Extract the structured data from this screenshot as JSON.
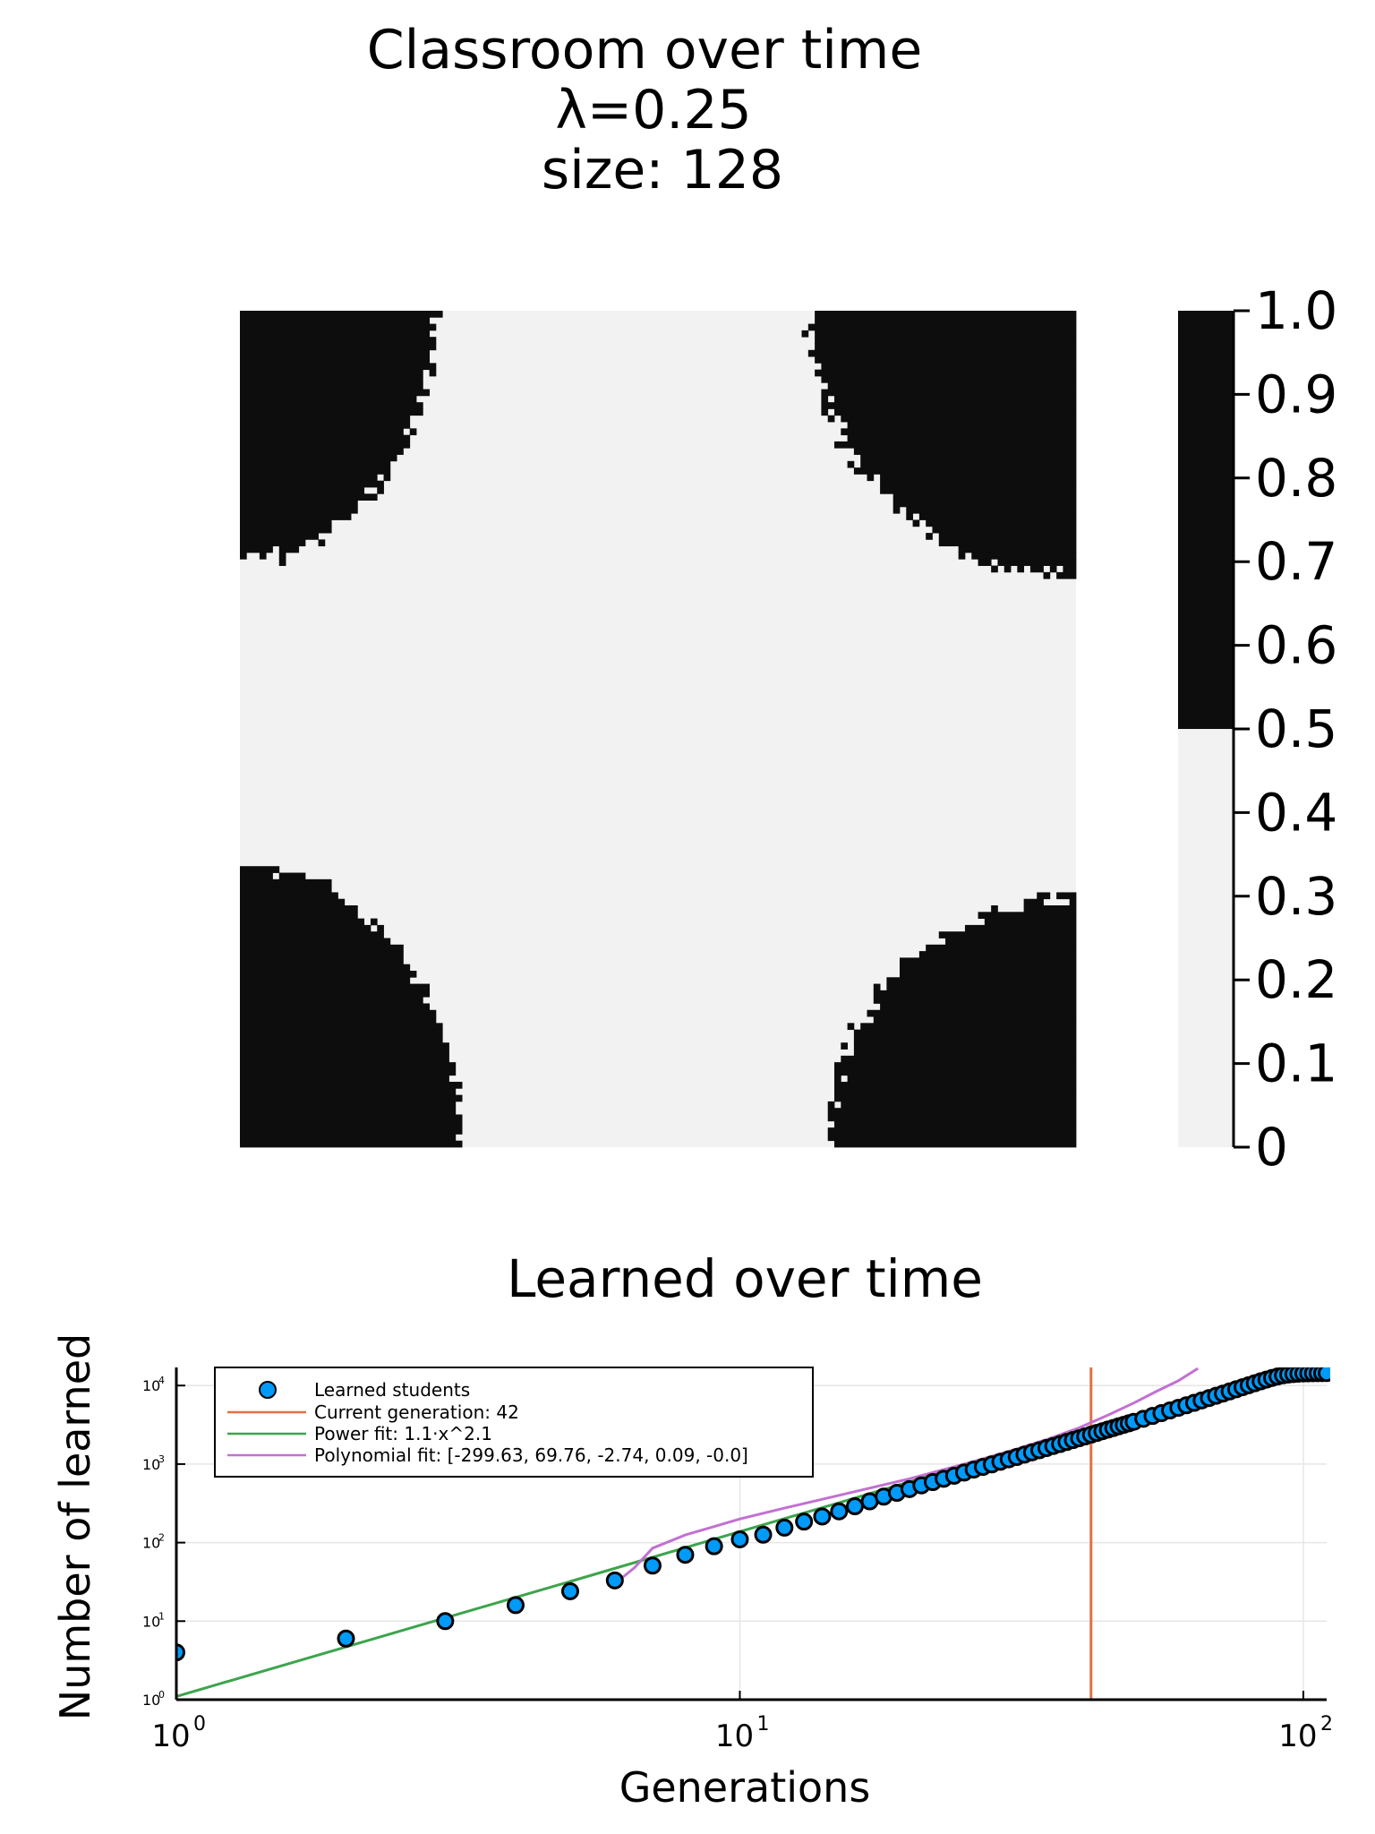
{
  "chart_data": [
    {
      "type": "heatmap",
      "title_lines": [
        "Classroom over time",
        "λ=0.25",
        "size: 128"
      ],
      "grid_size": 128,
      "values_description_levels": [
        0,
        1
      ],
      "colorbar": {
        "ticks": [
          "0",
          "0.1",
          "0.2",
          "0.3",
          "0.4",
          "0.5",
          "0.6",
          "0.7",
          "0.8",
          "0.9",
          "1.0"
        ],
        "range": [
          0,
          1
        ],
        "threshold": 0.5,
        "low_color": "#f2f2f2",
        "high_color": "#0d0d0d"
      },
      "blobs": [
        {
          "corner": "top-left",
          "radius_cells": 30
        },
        {
          "corner": "top-right",
          "radius_cells": 32
        },
        {
          "corner": "bottom-left",
          "radius_cells": 34
        },
        {
          "corner": "bottom-right",
          "radius_cells": 30
        }
      ]
    },
    {
      "type": "scatter",
      "title": "Learned over time",
      "xlabel": "Generations",
      "ylabel": "Number of learned",
      "xscale": "log",
      "yscale": "log",
      "xlim": [
        1,
        110
      ],
      "ylim": [
        1,
        17000
      ],
      "xticks": [
        {
          "value": 1,
          "base": "10",
          "exp": "0"
        },
        {
          "value": 10,
          "base": "10",
          "exp": "1"
        },
        {
          "value": 100,
          "base": "10",
          "exp": "2"
        }
      ],
      "yticks": [
        {
          "value": 1,
          "base": "10",
          "exp": "0"
        },
        {
          "value": 10,
          "base": "10",
          "exp": "1"
        },
        {
          "value": 100,
          "base": "10",
          "exp": "2"
        },
        {
          "value": 1000,
          "base": "10",
          "exp": "3"
        },
        {
          "value": 10000,
          "base": "10",
          "exp": "4"
        }
      ],
      "grid": true,
      "legend_position": "top-left",
      "series": [
        {
          "name": "Learned students",
          "kind": "scatter",
          "color": "#009af9",
          "x": [
            1,
            2,
            3,
            4,
            5,
            6,
            7,
            8,
            9,
            10,
            11,
            12,
            13,
            14,
            15,
            16,
            17,
            18,
            19,
            20,
            21,
            22,
            23,
            24,
            25,
            26,
            27,
            28,
            29,
            30,
            31,
            32,
            33,
            34,
            35,
            36,
            37,
            38,
            39,
            40,
            41,
            42,
            43,
            44,
            45,
            46,
            47,
            48,
            49,
            50,
            52,
            54,
            56,
            58,
            60,
            62,
            64,
            66,
            68,
            70,
            72,
            74,
            76,
            78,
            80,
            82,
            84,
            86,
            88,
            90,
            92,
            94,
            96,
            98,
            100,
            102,
            104,
            106,
            108,
            110
          ],
          "y": [
            4,
            6,
            10,
            16,
            24,
            33,
            51,
            70,
            90,
            110,
            126,
            155,
            185,
            215,
            250,
            290,
            335,
            385,
            430,
            480,
            535,
            590,
            650,
            710,
            780,
            850,
            920,
            990,
            1070,
            1150,
            1230,
            1320,
            1410,
            1500,
            1600,
            1700,
            1800,
            1910,
            2020,
            2130,
            2250,
            2370,
            2490,
            2620,
            2750,
            2880,
            3020,
            3160,
            3300,
            3450,
            3770,
            4100,
            4450,
            4820,
            5200,
            5600,
            6020,
            6460,
            6920,
            7400,
            7900,
            8420,
            8960,
            9520,
            10100,
            10700,
            11300,
            11900,
            12500,
            13050,
            13500,
            13800,
            14000,
            14150,
            14250,
            14300,
            14350,
            14380,
            14400,
            14420
          ]
        },
        {
          "name": "Current generation: 42",
          "kind": "vline",
          "color": "#e26f46",
          "x": 42
        },
        {
          "name": "Power fit: 1.1·x^2.1",
          "kind": "line",
          "color": "#3da44d",
          "x": [
            1,
            2,
            3,
            5,
            7,
            10,
            15,
            20,
            30,
            40,
            50,
            60,
            70,
            80,
            90,
            100,
            110
          ],
          "y": [
            1.1,
            4.7,
            11,
            32,
            65,
            138,
            322,
            594,
            1391,
            2564,
            4100,
            6000,
            8300,
            11000,
            14000,
            16000,
            16500
          ]
        },
        {
          "name": "Polynomial fit: [-299.63, 69.76, -2.74, 0.09, -0.0]",
          "kind": "line",
          "color": "#c271d2",
          "x": [
            6,
            6.5,
            7,
            8,
            9,
            10,
            12,
            15,
            20,
            25,
            30,
            35,
            40,
            45,
            50,
            55,
            60,
            65
          ],
          "y": [
            30,
            48,
            85,
            125,
            160,
            200,
            275,
            400,
            650,
            1000,
            1450,
            2050,
            2900,
            4200,
            6000,
            8500,
            11500,
            16500
          ]
        }
      ]
    }
  ]
}
